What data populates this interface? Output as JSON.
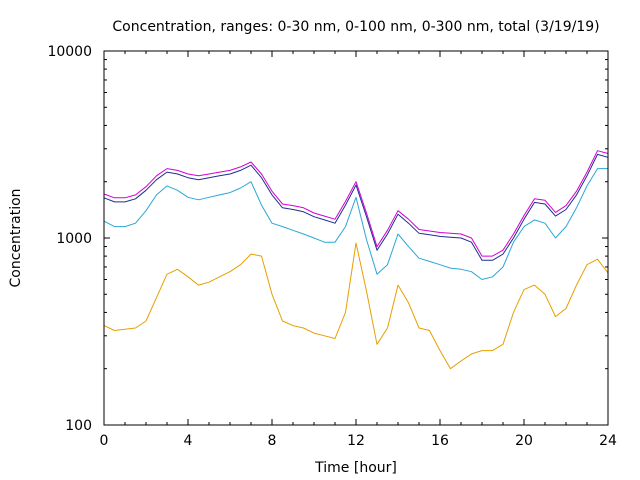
{
  "chart_data": {
    "type": "line",
    "title": "Concentration, ranges: 0-30 nm, 0-100 nm, 0-300 nm, total (3/19/19)",
    "xlabel": "Time [hour]",
    "ylabel": "Concentration",
    "xlim": [
      0,
      24
    ],
    "ylim": [
      100,
      10000
    ],
    "yscale": "log",
    "grid": false,
    "x_ticks": [
      0,
      4,
      8,
      12,
      16,
      20,
      24
    ],
    "x_tick_labels": [
      "0",
      "4",
      "8",
      "12",
      "16",
      "20",
      "24"
    ],
    "y_ticks": [
      100,
      1000,
      10000
    ],
    "y_tick_labels": [
      "100",
      "1000",
      "10000"
    ],
    "series": [
      {
        "name": "0-30 nm",
        "color": "#e69f00",
        "x": [
          0,
          0.5,
          1,
          1.5,
          2,
          2.5,
          3,
          3.5,
          4,
          4.5,
          5,
          5.5,
          6,
          6.5,
          7,
          7.5,
          8,
          8.5,
          9,
          9.5,
          10,
          10.5,
          11,
          11.5,
          12,
          12.5,
          13,
          13.5,
          14,
          14.5,
          15,
          15.5,
          16,
          16.5,
          17,
          17.5,
          18,
          18.5,
          19,
          19.5,
          20,
          20.5,
          21,
          21.5,
          22,
          22.5,
          23,
          23.5,
          24
        ],
        "values": [
          340,
          320,
          325,
          330,
          360,
          480,
          640,
          680,
          620,
          560,
          580,
          620,
          660,
          720,
          820,
          800,
          500,
          360,
          340,
          330,
          310,
          300,
          290,
          400,
          940,
          520,
          270,
          330,
          560,
          450,
          330,
          320,
          250,
          200,
          220,
          240,
          250,
          250,
          270,
          400,
          530,
          560,
          500,
          380,
          420,
          560,
          720,
          770,
          650
        ]
      },
      {
        "name": "0-100 nm",
        "color": "#2aa7d6",
        "x": [
          0,
          0.5,
          1,
          1.5,
          2,
          2.5,
          3,
          3.5,
          4,
          4.5,
          5,
          5.5,
          6,
          6.5,
          7,
          7.5,
          8,
          8.5,
          9,
          9.5,
          10,
          10.5,
          11,
          11.5,
          12,
          12.5,
          13,
          13.5,
          14,
          14.5,
          15,
          15.5,
          16,
          16.5,
          17,
          17.5,
          18,
          18.5,
          19,
          19.5,
          20,
          20.5,
          21,
          21.5,
          22,
          22.5,
          23,
          23.5,
          24
        ],
        "values": [
          1230,
          1150,
          1150,
          1200,
          1400,
          1700,
          1900,
          1800,
          1650,
          1600,
          1650,
          1700,
          1750,
          1850,
          2000,
          1500,
          1200,
          1150,
          1100,
          1050,
          1000,
          950,
          950,
          1150,
          1650,
          980,
          640,
          720,
          1050,
          900,
          780,
          750,
          720,
          690,
          680,
          660,
          600,
          620,
          700,
          950,
          1150,
          1250,
          1200,
          1000,
          1150,
          1450,
          1900,
          2350,
          2350
        ]
      },
      {
        "name": "0-300 nm",
        "color": "#1f2f8f",
        "x": [
          0,
          0.5,
          1,
          1.5,
          2,
          2.5,
          3,
          3.5,
          4,
          4.5,
          5,
          5.5,
          6,
          6.5,
          7,
          7.5,
          8,
          8.5,
          9,
          9.5,
          10,
          10.5,
          11,
          11.5,
          12,
          12.5,
          13,
          13.5,
          14,
          14.5,
          15,
          15.5,
          16,
          16.5,
          17,
          17.5,
          18,
          18.5,
          19,
          19.5,
          20,
          20.5,
          21,
          21.5,
          22,
          22.5,
          23,
          23.5,
          24
        ],
        "values": [
          1640,
          1560,
          1560,
          1620,
          1800,
          2050,
          2250,
          2200,
          2100,
          2050,
          2100,
          2150,
          2200,
          2300,
          2450,
          2100,
          1700,
          1450,
          1420,
          1380,
          1300,
          1250,
          1200,
          1500,
          1920,
          1300,
          860,
          1050,
          1340,
          1200,
          1060,
          1040,
          1020,
          1010,
          1000,
          950,
          760,
          760,
          820,
          1000,
          1260,
          1550,
          1520,
          1310,
          1420,
          1700,
          2150,
          2800,
          2700
        ]
      },
      {
        "name": "total",
        "color": "#d400d4",
        "x": [
          0,
          0.5,
          1,
          1.5,
          2,
          2.5,
          3,
          3.5,
          4,
          4.5,
          5,
          5.5,
          6,
          6.5,
          7,
          7.5,
          8,
          8.5,
          9,
          9.5,
          10,
          10.5,
          11,
          11.5,
          12,
          12.5,
          13,
          13.5,
          14,
          14.5,
          15,
          15.5,
          16,
          16.5,
          17,
          17.5,
          18,
          18.5,
          19,
          19.5,
          20,
          20.5,
          21,
          21.5,
          22,
          22.5,
          23,
          23.5,
          24
        ],
        "values": [
          1720,
          1640,
          1640,
          1700,
          1880,
          2150,
          2350,
          2300,
          2200,
          2150,
          2200,
          2250,
          2300,
          2400,
          2550,
          2200,
          1780,
          1520,
          1490,
          1450,
          1360,
          1310,
          1260,
          1570,
          2000,
          1360,
          900,
          1100,
          1400,
          1260,
          1110,
          1090,
          1070,
          1060,
          1050,
          1000,
          800,
          800,
          860,
          1050,
          1320,
          1620,
          1590,
          1370,
          1490,
          1780,
          2250,
          2930,
          2830
        ]
      }
    ]
  }
}
